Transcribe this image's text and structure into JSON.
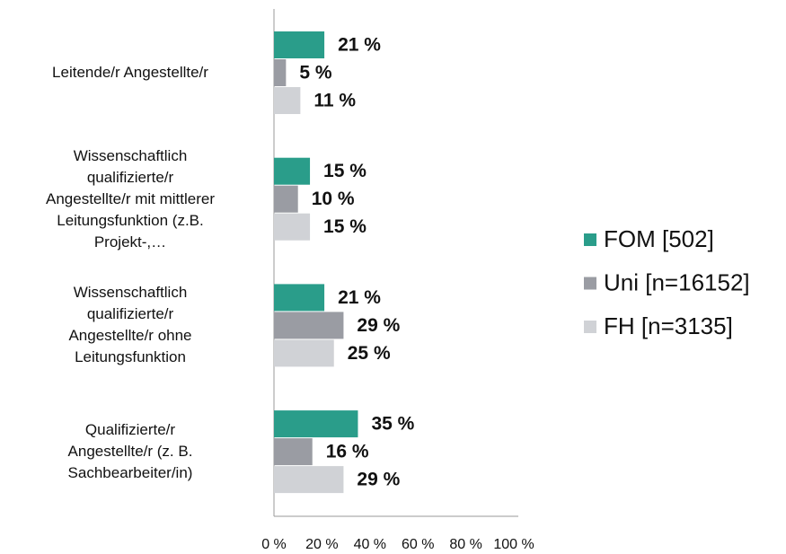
{
  "chart_data": {
    "type": "bar",
    "orientation": "horizontal",
    "categories": [
      "Leitende/r Angestellte/r",
      "Wissenschaftlich\nqualifizierte/r\nAngestellte/r mit mittlerer\nLeitungsfunktion (z.B.\nProjekt-,…",
      "Wissenschaftlich\nqualifizierte/r\nAngestellte/r ohne\nLeitungsfunktion",
      "Qualifizierte/r\nAngestellte/r (z. B.\nSachbearbeiter/in)"
    ],
    "series": [
      {
        "name": "FOM [502]",
        "color": "#2a9d8a",
        "values": [
          21,
          15,
          21,
          35
        ],
        "value_labels": [
          "21 %",
          "15 %",
          "21 %",
          "35 %"
        ]
      },
      {
        "name": "Uni [n=16152]",
        "color": "#9a9ca3",
        "values": [
          5,
          10,
          29,
          16
        ],
        "value_labels": [
          "5 %",
          "10 %",
          "29 %",
          "16 %"
        ]
      },
      {
        "name": "FH [n=3135]",
        "color": "#d0d2d6",
        "values": [
          11,
          15,
          25,
          29
        ],
        "value_labels": [
          "11 %",
          "15 %",
          "25 %",
          "29 %"
        ]
      }
    ],
    "xlim": [
      0,
      100
    ],
    "xticks": [
      {
        "value": 0,
        "label": "0 %"
      },
      {
        "value": 20,
        "label": "20 %"
      },
      {
        "value": 40,
        "label": "40 %"
      },
      {
        "value": 60,
        "label": "60 %"
      },
      {
        "value": 80,
        "label": "80 %"
      },
      {
        "value": 100,
        "label": "100 %"
      }
    ],
    "legend": "right"
  }
}
